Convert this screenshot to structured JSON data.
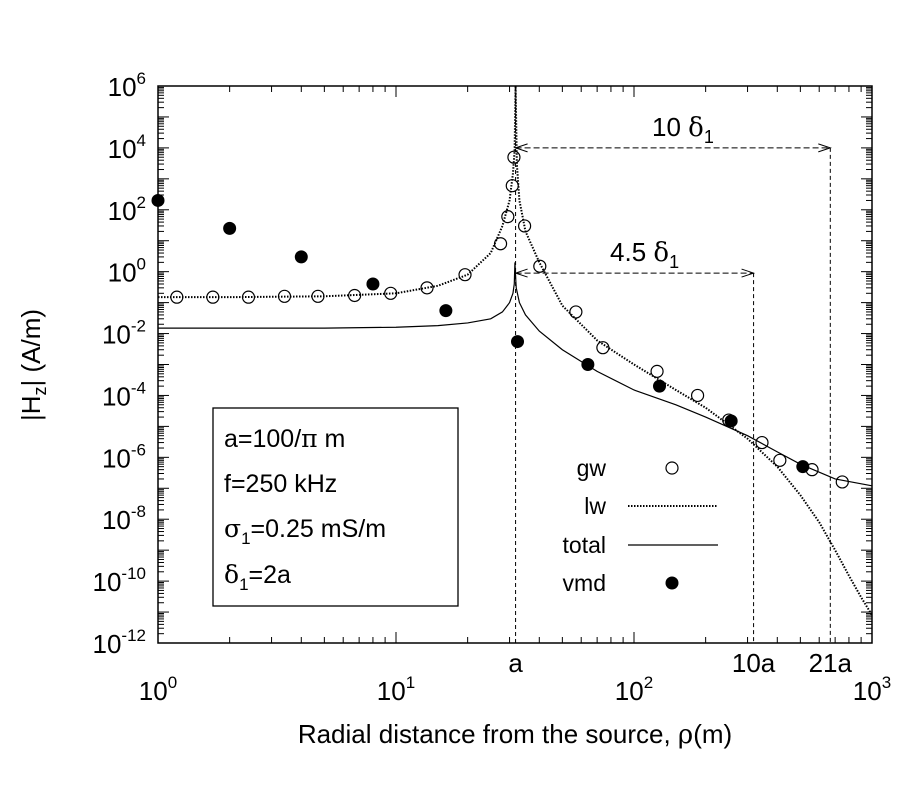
{
  "chart_data": {
    "type": "scatter",
    "xscale": "log",
    "yscale": "log",
    "xlim": [
      1,
      1000
    ],
    "ylim": [
      1e-12,
      1000000.0
    ],
    "xticks": [
      {
        "value": 1,
        "base": "10",
        "exp": "0"
      },
      {
        "value": 10,
        "base": "10",
        "exp": "1"
      },
      {
        "value": 100,
        "base": "10",
        "exp": "2"
      },
      {
        "value": 1000,
        "base": "10",
        "exp": "3"
      }
    ],
    "yticks": [
      {
        "value": 1000000.0,
        "base": "10",
        "exp": "6"
      },
      {
        "value": 10000.0,
        "base": "10",
        "exp": "4"
      },
      {
        "value": 100.0,
        "base": "10",
        "exp": "2"
      },
      {
        "value": 1,
        "base": "10",
        "exp": "0"
      },
      {
        "value": 0.01,
        "base": "10",
        "exp": "-2"
      },
      {
        "value": 0.0001,
        "base": "10",
        "exp": "-4"
      },
      {
        "value": 1e-06,
        "base": "10",
        "exp": "-6"
      },
      {
        "value": 1e-08,
        "base": "10",
        "exp": "-8"
      },
      {
        "value": 1e-10,
        "base": "10",
        "exp": "-10"
      },
      {
        "value": 1e-12,
        "base": "10",
        "exp": "-12"
      }
    ],
    "marker_ticks": [
      {
        "label": "a",
        "x": 31.8
      },
      {
        "label": "10a",
        "x": 318
      },
      {
        "label": "21a",
        "x": 668
      }
    ],
    "xlabel": {
      "text": "Radial distance from the source,  ",
      "symbol": "ρ",
      "unit": "(m)"
    },
    "ylabel": {
      "text": "|H",
      "sub": "z",
      "rest": "|  (A/m)"
    },
    "annotations": [
      {
        "prefix": "10 ",
        "symbol": "δ",
        "sub": "1",
        "x_start": 31.8,
        "x_end": 668,
        "y": 10000.0
      },
      {
        "prefix": "4.5 ",
        "symbol": "δ",
        "sub": "1",
        "x_start": 31.8,
        "x_end": 318,
        "y": 0.9
      }
    ],
    "params": [
      {
        "pre": "a=100/",
        "sym": "π",
        "sub": "",
        "post": " m"
      },
      {
        "pre": "f=250 kHz",
        "sym": "",
        "sub": "",
        "post": ""
      },
      {
        "pre": "",
        "sym": "σ",
        "sub": "1",
        "post": "=0.25 mS/m"
      },
      {
        "pre": "",
        "sym": "δ",
        "sub": "1",
        "post": "=2a"
      }
    ],
    "series": [
      {
        "name": "gw",
        "style": "open-circle",
        "x": [
          1.2,
          1.7,
          2.4,
          3.4,
          4.7,
          6.7,
          9.5,
          13.5,
          19.5,
          27.5,
          29.5,
          30.8,
          31.3,
          34.7,
          40.2,
          57,
          74,
          125,
          185,
          250,
          345,
          410,
          560,
          750
        ],
        "y": [
          0.15,
          0.15,
          0.15,
          0.16,
          0.16,
          0.17,
          0.2,
          0.3,
          0.8,
          8,
          60,
          600,
          5000,
          30,
          1.5,
          0.05,
          0.0035,
          0.0006,
          0.0001,
          1.6e-05,
          3e-06,
          8e-07,
          4e-07,
          1.6e-07
        ]
      },
      {
        "name": "lw",
        "style": "dotted-line",
        "x": [
          1,
          2,
          5,
          10,
          15,
          20,
          25,
          28,
          30,
          31,
          31.5,
          31.8,
          32.2,
          33,
          35,
          40,
          50,
          70,
          100,
          150,
          200,
          300,
          400,
          500,
          600,
          700,
          800,
          900,
          1000
        ],
        "y": [
          0.15,
          0.15,
          0.16,
          0.2,
          0.35,
          0.8,
          4,
          30,
          200,
          1500,
          8000,
          1000000,
          3000,
          200,
          20,
          2,
          0.08,
          0.006,
          0.001,
          0.00015,
          4e-05,
          4e-06,
          5e-07,
          6e-08,
          8e-09,
          1e-09,
          1.5e-10,
          3e-11,
          8e-12
        ]
      },
      {
        "name": "total",
        "style": "solid-line",
        "x": [
          1,
          2,
          5,
          10,
          15,
          20,
          25,
          28,
          30,
          31,
          31.4,
          31.6,
          31.8,
          32,
          33,
          35,
          40,
          50,
          70,
          100,
          150,
          200,
          300,
          400,
          500,
          700,
          1000
        ],
        "y": [
          0.015,
          0.015,
          0.015,
          0.016,
          0.018,
          0.022,
          0.03,
          0.05,
          0.1,
          0.2,
          0.4,
          2,
          0.7,
          0.3,
          0.1,
          0.04,
          0.012,
          0.003,
          0.0006,
          0.00015,
          5e-05,
          2e-05,
          5e-06,
          1.5e-06,
          6e-07,
          2e-07,
          1.2e-07
        ]
      },
      {
        "name": "vmd",
        "style": "filled-circle",
        "x": [
          1,
          2,
          4,
          8,
          16.2,
          32.4,
          64,
          128,
          256,
          512
        ],
        "y": [
          200,
          25,
          3,
          0.4,
          0.055,
          0.0055,
          0.001,
          0.0002,
          1.5e-05,
          5e-07
        ]
      }
    ],
    "legend": {
      "position": "center-right"
    }
  }
}
